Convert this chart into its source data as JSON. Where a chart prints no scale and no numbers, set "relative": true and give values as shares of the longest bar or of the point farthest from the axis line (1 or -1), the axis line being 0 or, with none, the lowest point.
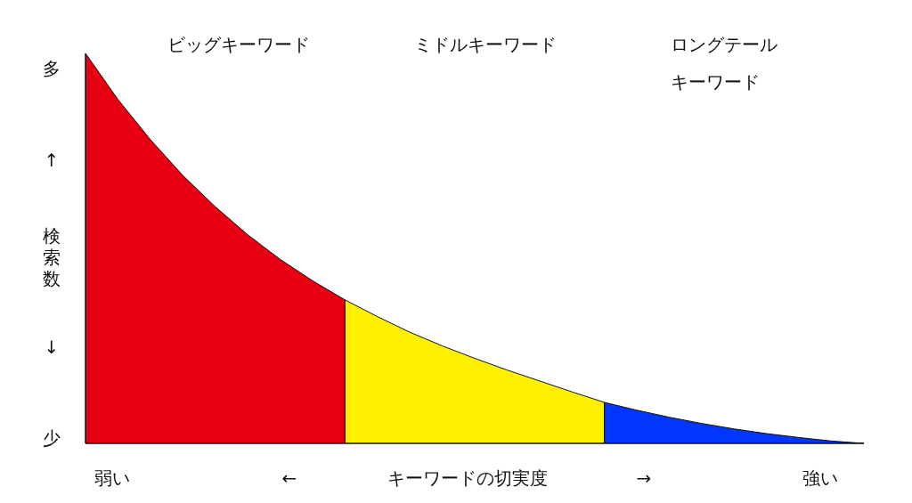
{
  "chart_data": {
    "type": "area",
    "relative": true,
    "xlabel": "キーワードの切実度",
    "ylabel": "検索数",
    "categories": [
      null,
      null,
      null,
      null,
      null,
      null,
      null,
      null,
      null,
      null,
      null,
      null,
      null,
      null,
      null,
      null,
      null,
      null,
      null,
      null,
      null,
      null,
      null,
      null,
      null
    ],
    "series": [
      {
        "color": "#e60012",
        "values": [
          1.0,
          0.882,
          0.779,
          0.687,
          0.607,
          0.535,
          0.472,
          0.417,
          0.368,
          null,
          null,
          null,
          null,
          null,
          null,
          null,
          null,
          null,
          null,
          null,
          null,
          null,
          null,
          null,
          null
        ]
      },
      {
        "color": "#fff100",
        "values": [
          null,
          null,
          null,
          null,
          null,
          null,
          null,
          null,
          0.368,
          0.325,
          0.285,
          0.25,
          0.218,
          0.188,
          0.16,
          0.132,
          0.105,
          null,
          null,
          null,
          null,
          null,
          null,
          null,
          null
        ]
      },
      {
        "color": "#0036ff",
        "values": [
          null,
          null,
          null,
          null,
          null,
          null,
          null,
          null,
          null,
          null,
          null,
          null,
          null,
          null,
          null,
          null,
          0.105,
          0.085,
          0.067,
          0.051,
          0.037,
          0.025,
          0.015,
          0.006,
          0
        ]
      }
    ],
    "annotations": [
      "多",
      "↑",
      "↓",
      "少",
      "弱い",
      "←",
      "→",
      "強い",
      "ビッグキーワード",
      "ミドルキーワード",
      "ロングテールキーワード"
    ]
  }
}
